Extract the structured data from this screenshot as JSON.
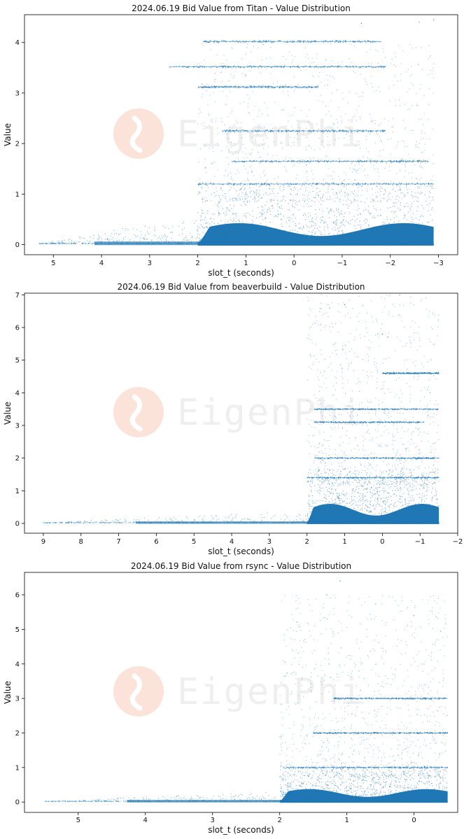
{
  "watermark": {
    "text": "EigenPhi"
  },
  "colors": {
    "points": "#1f77b4",
    "axis": "#000000",
    "watermark_text": "#efefef",
    "watermark_logo": "#fbe3da"
  },
  "chart_data": [
    {
      "type": "scatter",
      "title": "2024.06.19 Bid Value from Titan - Value Distribution",
      "xlabel": "slot_t (seconds)",
      "ylabel": "Value",
      "x_inverted": true,
      "xlim": [
        5.6,
        -3.4
      ],
      "ylim": [
        -0.2,
        4.55
      ],
      "xticks": [
        5,
        4,
        3,
        2,
        1,
        0,
        -1,
        -2,
        -3
      ],
      "yticks": [
        0,
        1,
        2,
        3,
        4
      ],
      "grid": false,
      "dense_region": {
        "x": [
          2.0,
          -2.9
        ],
        "values": [
          0.0,
          0.85
        ]
      },
      "sparse_low_tail": {
        "x": [
          5.3,
          2.0
        ],
        "values": [
          0.0,
          0.6
        ]
      },
      "high_value_levels": [
        {
          "value": 4.02,
          "x": [
            1.9,
            -1.8
          ]
        },
        {
          "value": 3.52,
          "x": [
            2.6,
            -1.9
          ]
        },
        {
          "value": 3.12,
          "x": [
            2.0,
            -0.5
          ]
        },
        {
          "value": 2.25,
          "x": [
            1.5,
            -1.9
          ]
        },
        {
          "value": 1.65,
          "x": [
            1.3,
            -2.8
          ]
        },
        {
          "value": 1.2,
          "x": [
            2.0,
            -2.9
          ]
        }
      ],
      "max_points": [
        {
          "x": -2.9,
          "value": 4.45
        },
        {
          "x": -2.6,
          "value": 4.4
        },
        {
          "x": -1.4,
          "value": 4.38
        }
      ]
    },
    {
      "type": "scatter",
      "title": "2024.06.19 Bid Value from beaverbuild - Value Distribution",
      "xlabel": "slot_t (seconds)",
      "ylabel": "Value",
      "x_inverted": true,
      "xlim": [
        9.5,
        -2.0
      ],
      "ylim": [
        -0.3,
        7.05
      ],
      "xticks": [
        9,
        8,
        7,
        6,
        5,
        4,
        3,
        2,
        1,
        0,
        -1,
        -2
      ],
      "yticks": [
        0,
        1,
        2,
        3,
        4,
        5,
        6,
        7
      ],
      "grid": false,
      "dense_region": {
        "x": [
          2.0,
          -1.5
        ],
        "values": [
          0.0,
          1.2
        ]
      },
      "sparse_low_tail": {
        "x": [
          9.0,
          2.0
        ],
        "values": [
          0.0,
          0.4
        ]
      },
      "high_value_levels": [
        {
          "value": 4.6,
          "x": [
            0.0,
            -1.5
          ]
        },
        {
          "value": 3.5,
          "x": [
            1.8,
            -1.5
          ]
        },
        {
          "value": 3.1,
          "x": [
            1.8,
            -1.1
          ]
        },
        {
          "value": 2.0,
          "x": [
            1.8,
            -1.5
          ]
        },
        {
          "value": 1.4,
          "x": [
            2.0,
            -1.5
          ]
        }
      ],
      "max_points": [
        {
          "x": 1.0,
          "value": 6.7
        },
        {
          "x": 1.4,
          "value": 6.6
        },
        {
          "x": 0.0,
          "value": 5.8
        }
      ]
    },
    {
      "type": "scatter",
      "title": "2024.06.19 Bid Value from rsync - Value Distribution",
      "xlabel": "slot_t (seconds)",
      "ylabel": "Value",
      "x_inverted": true,
      "xlim": [
        5.8,
        -0.65
      ],
      "ylim": [
        -0.3,
        6.65
      ],
      "xticks": [
        5,
        4,
        3,
        2,
        1,
        0
      ],
      "yticks": [
        0,
        1,
        2,
        3,
        4,
        5,
        6
      ],
      "grid": false,
      "dense_region": {
        "x": [
          2.0,
          -0.5
        ],
        "values": [
          0.0,
          0.75
        ]
      },
      "sparse_low_tail": {
        "x": [
          5.5,
          2.0
        ],
        "values": [
          0.0,
          0.3
        ]
      },
      "high_value_levels": [
        {
          "value": 1.0,
          "x": [
            1.9,
            -0.5
          ]
        },
        {
          "value": 2.0,
          "x": [
            1.5,
            -0.5
          ]
        },
        {
          "value": 3.0,
          "x": [
            1.2,
            -0.5
          ]
        }
      ],
      "max_points": [
        {
          "x": 1.1,
          "value": 6.4
        },
        {
          "x": 1.3,
          "value": 6.0
        },
        {
          "x": 0.0,
          "value": 5.4
        }
      ]
    }
  ]
}
